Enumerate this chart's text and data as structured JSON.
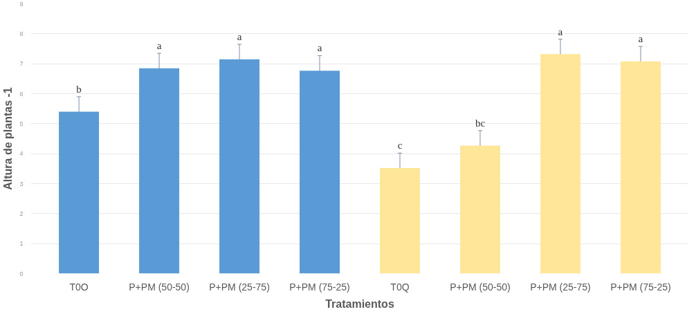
{
  "chart_data": {
    "type": "bar",
    "xlabel": "Tratamientos",
    "ylabel": "Altura de plantas -1",
    "categories": [
      "T0O",
      "P+PM (50-50)",
      "P+PM (25-75)",
      "P+PM (75-25)",
      "T0Q",
      "P+PM (50-50)",
      "P+PM (25-75)",
      "P+PM (75-25)"
    ],
    "values": [
      5.4,
      6.85,
      7.15,
      6.77,
      3.52,
      4.27,
      7.32,
      7.08
    ],
    "errors": [
      0.5,
      0.5,
      0.5,
      0.5,
      0.5,
      0.5,
      0.5,
      0.5
    ],
    "value_labels": [
      "b",
      "a",
      "a",
      "a",
      "c",
      "bc",
      "a",
      "a"
    ],
    "colors": [
      "#5b9bd5",
      "#5b9bd5",
      "#5b9bd5",
      "#5b9bd5",
      "#ffe699",
      "#ffe699",
      "#ffe699",
      "#ffe699"
    ],
    "ylim": [
      0,
      9
    ],
    "yticks": [
      0,
      1,
      2,
      3,
      4,
      5,
      6,
      7,
      8,
      9
    ],
    "grid": "y"
  }
}
